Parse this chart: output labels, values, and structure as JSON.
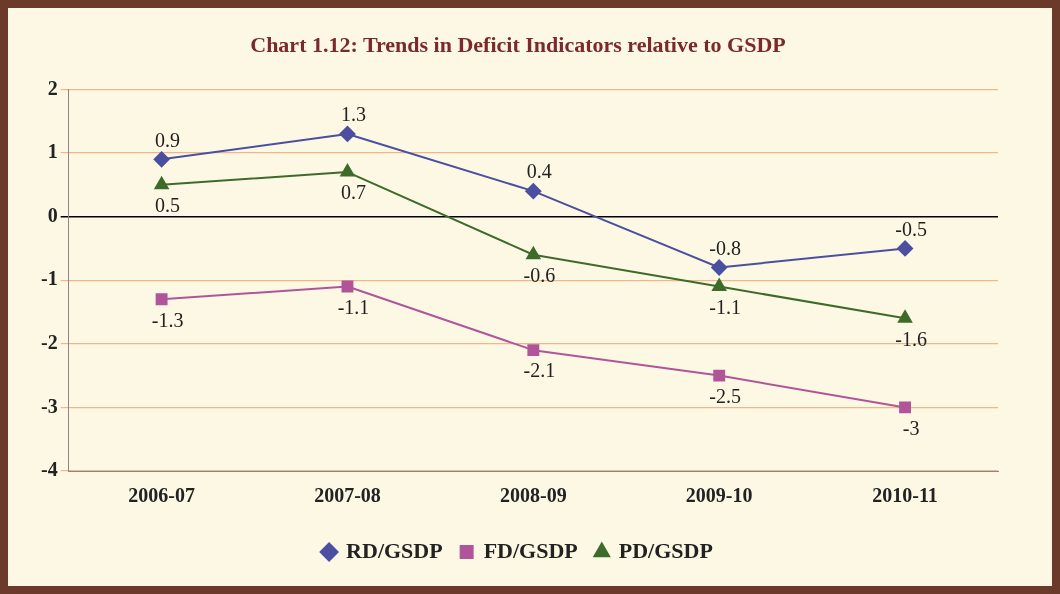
{
  "chart_data": {
    "type": "line",
    "title": "Chart 1.12: Trends in Deficit Indicators relative to GSDP",
    "categories": [
      "2006-07",
      "2007-08",
      "2008-09",
      "2009-10",
      "2010-11"
    ],
    "series": [
      {
        "name": "RD/GSDP",
        "color": "#4a4fa0",
        "marker": "diamond",
        "values": [
          0.9,
          1.3,
          0.4,
          -0.8,
          -0.5
        ]
      },
      {
        "name": "FD/GSDP",
        "color": "#b0559a",
        "marker": "square",
        "values": [
          -1.3,
          -1.1,
          -2.1,
          -2.5,
          -3
        ]
      },
      {
        "name": "PD/GSDP",
        "color": "#3d6b2a",
        "marker": "triangle",
        "values": [
          0.5,
          0.7,
          -0.6,
          -1.1,
          -1.6
        ]
      }
    ],
    "ylim": [
      -4,
      2
    ],
    "yticks": [
      -4,
      -3,
      -2,
      -1,
      0,
      1,
      2
    ],
    "grid": "y",
    "legend": "bottom",
    "data_labels": true
  }
}
